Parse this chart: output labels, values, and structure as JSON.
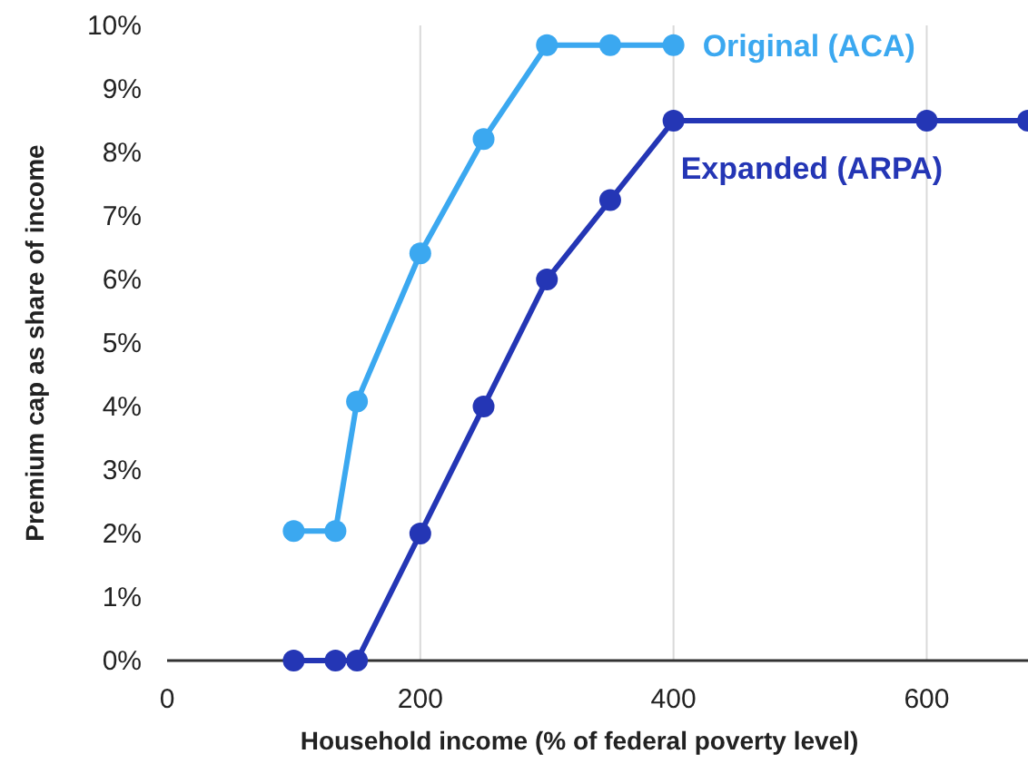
{
  "chart_data": {
    "type": "line",
    "xlabel": "Household income (% of federal poverty level)",
    "ylabel": "Premium cap as share of income",
    "xlim": [
      0,
      680
    ],
    "xticks": [
      0,
      200,
      400,
      600
    ],
    "ylim": [
      0,
      10
    ],
    "yticks": [
      {
        "value": 0,
        "label": "0%"
      },
      {
        "value": 1,
        "label": "1%"
      },
      {
        "value": 2,
        "label": "2%"
      },
      {
        "value": 3,
        "label": "3%"
      },
      {
        "value": 4,
        "label": "4%"
      },
      {
        "value": 5,
        "label": "5%"
      },
      {
        "value": 6,
        "label": "6%"
      },
      {
        "value": 7,
        "label": "7%"
      },
      {
        "value": 8,
        "label": "8%"
      },
      {
        "value": 9,
        "label": "9%"
      },
      {
        "value": 10,
        "label": "10%"
      }
    ],
    "grid": "x",
    "marker": "circle",
    "line_style": "solid",
    "series": [
      {
        "name": "Original (ACA)",
        "color": "#3ba8f0",
        "x": [
          100,
          133,
          150,
          200,
          250,
          300,
          350,
          400
        ],
        "values": [
          2.04,
          2.04,
          4.08,
          6.41,
          8.21,
          9.69,
          9.69,
          9.69
        ]
      },
      {
        "name": "Expanded (ARPA)",
        "color": "#2436b5",
        "x": [
          100,
          133,
          150,
          200,
          250,
          300,
          350,
          400,
          600,
          680
        ],
        "values": [
          0,
          0,
          0,
          2,
          4,
          6,
          7.25,
          8.5,
          8.5,
          8.5
        ]
      }
    ]
  }
}
